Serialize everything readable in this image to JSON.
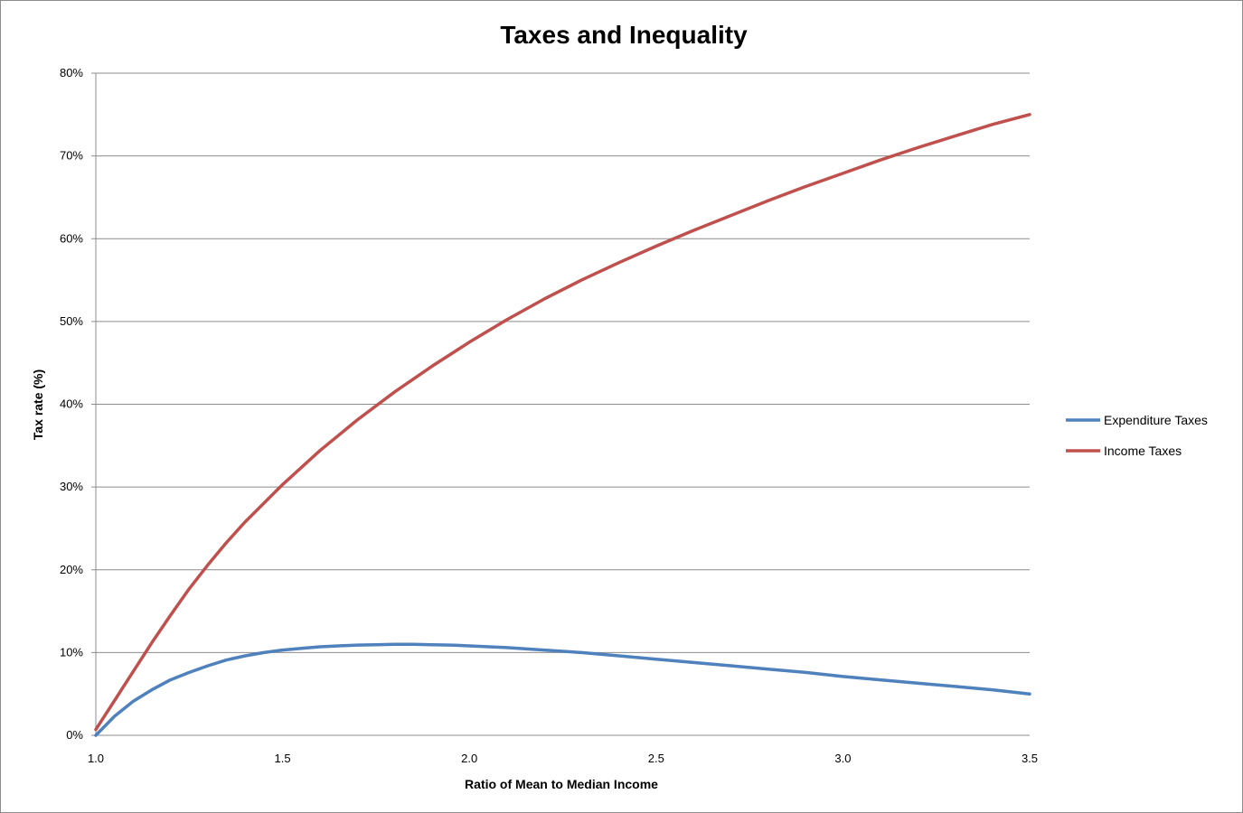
{
  "chart_data": {
    "type": "line",
    "title": "Taxes and Inequality",
    "xlabel": "Ratio of Mean to Median Income",
    "ylabel": "Tax rate (%)",
    "xlim": [
      1.0,
      3.5
    ],
    "ylim": [
      0,
      80
    ],
    "x_ticks": [
      "1.0",
      "1.5",
      "2.0",
      "2.5",
      "3.0",
      "3.5"
    ],
    "x_tick_values": [
      1.0,
      1.5,
      2.0,
      2.5,
      3.0,
      3.5
    ],
    "y_ticks": [
      "0%",
      "10%",
      "20%",
      "30%",
      "40%",
      "50%",
      "60%",
      "70%",
      "80%"
    ],
    "y_tick_values": [
      0,
      10,
      20,
      30,
      40,
      50,
      60,
      70,
      80
    ],
    "grid": true,
    "legend_position": "right",
    "series": [
      {
        "name": "Expenditure Taxes",
        "color": "#4f81bd",
        "x": [
          1.0,
          1.05,
          1.1,
          1.15,
          1.2,
          1.25,
          1.3,
          1.35,
          1.4,
          1.45,
          1.5,
          1.55,
          1.6,
          1.65,
          1.7,
          1.75,
          1.8,
          1.85,
          1.9,
          1.95,
          2.0,
          2.1,
          2.2,
          2.3,
          2.4,
          2.5,
          2.6,
          2.7,
          2.8,
          2.9,
          3.0,
          3.1,
          3.2,
          3.3,
          3.4,
          3.5
        ],
        "y": [
          0.0,
          2.3,
          4.1,
          5.5,
          6.7,
          7.6,
          8.4,
          9.1,
          9.6,
          10.0,
          10.3,
          10.5,
          10.7,
          10.8,
          10.9,
          10.95,
          11.0,
          11.0,
          10.95,
          10.9,
          10.8,
          10.6,
          10.3,
          10.0,
          9.6,
          9.2,
          8.8,
          8.4,
          8.0,
          7.6,
          7.1,
          6.7,
          6.3,
          5.9,
          5.5,
          5.0
        ]
      },
      {
        "name": "Income Taxes",
        "color": "#c0504d",
        "x": [
          1.0,
          1.05,
          1.1,
          1.15,
          1.2,
          1.25,
          1.3,
          1.35,
          1.4,
          1.5,
          1.6,
          1.7,
          1.8,
          1.9,
          2.0,
          2.1,
          2.2,
          2.3,
          2.4,
          2.5,
          2.6,
          2.7,
          2.8,
          2.9,
          3.0,
          3.1,
          3.2,
          3.3,
          3.4,
          3.5
        ],
        "y": [
          0.7,
          4.2,
          7.7,
          11.2,
          14.5,
          17.7,
          20.6,
          23.3,
          25.8,
          30.3,
          34.4,
          38.1,
          41.5,
          44.6,
          47.5,
          50.2,
          52.7,
          55.0,
          57.1,
          59.1,
          61.0,
          62.8,
          64.6,
          66.3,
          67.9,
          69.5,
          71.0,
          72.4,
          73.8,
          75.0
        ]
      }
    ]
  }
}
